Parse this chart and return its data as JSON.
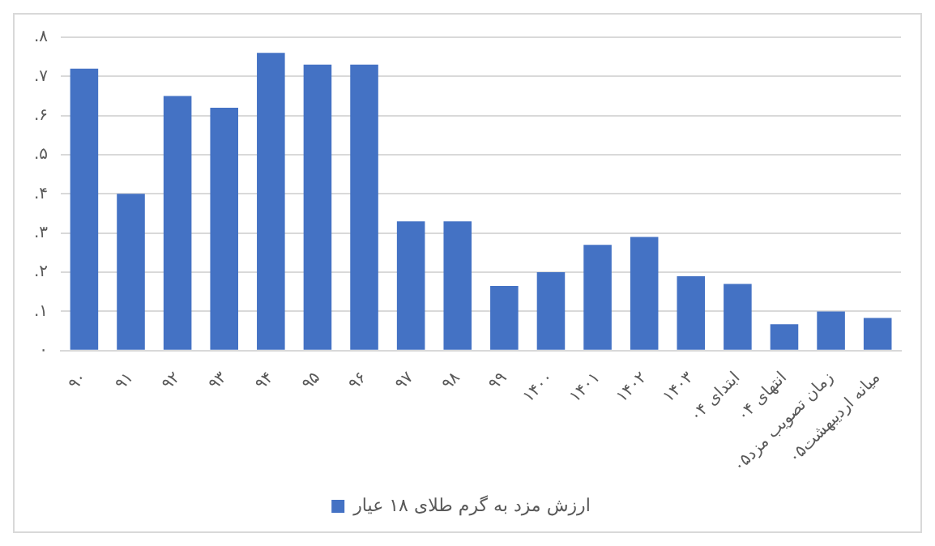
{
  "chart_data": {
    "type": "bar",
    "categories": [
      "۹۰",
      "۹۱",
      "۹۲",
      "۹۳",
      "۹۴",
      "۹۵",
      "۹۶",
      "۹۷",
      "۹۸",
      "۹۹",
      "۱۴۰۰",
      "۱۴۰۱",
      "۱۴۰۲",
      "۱۴۰۳",
      "ابتدای ۰۴",
      "انتهای ۰۴",
      "زمان تصویب مزد۰۵",
      "میانه اردیبهشت۰۵"
    ],
    "series": [
      {
        "name": "ارزش مزد به گرم طلای ۱۸ عیار",
        "color": "#4472c4",
        "values": [
          0.72,
          0.4,
          0.65,
          0.62,
          0.76,
          0.73,
          0.73,
          0.33,
          0.33,
          0.165,
          0.2,
          0.27,
          0.29,
          0.19,
          0.17,
          0.067,
          0.1,
          0.083
        ]
      }
    ],
    "ylim": [
      0,
      0.8
    ],
    "yticks": [
      {
        "value": 0,
        "label": "۰"
      },
      {
        "value": 0.1,
        "label": ".۱"
      },
      {
        "value": 0.2,
        "label": ".۲"
      },
      {
        "value": 0.3,
        "label": ".۳"
      },
      {
        "value": 0.4,
        "label": ".۴"
      },
      {
        "value": 0.5,
        "label": ".۵"
      },
      {
        "value": 0.6,
        "label": ".۶"
      },
      {
        "value": 0.7,
        "label": ".۷"
      },
      {
        "value": 0.8,
        "label": ".۸"
      }
    ],
    "grid": "y",
    "legend": "bottom"
  }
}
